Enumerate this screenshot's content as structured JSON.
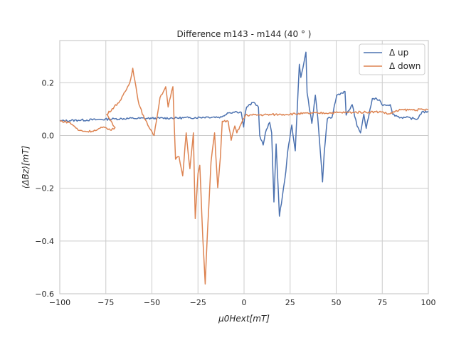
{
  "chart_data": {
    "type": "line",
    "title": "Difference m143 - m144 (40$^\\circ$)",
    "title_display": "Difference m143 - m144 (40 ° )",
    "xlabel": "μ0Hext[mT]",
    "ylabel": "⟨ΔBz⟩[mT]",
    "xlim": [
      -100,
      100
    ],
    "ylim": [
      -0.6,
      0.36
    ],
    "grid": true,
    "legend_position": "top-right",
    "xticks": [
      -100,
      -75,
      -50,
      -25,
      0,
      25,
      50,
      75,
      100
    ],
    "xtick_labels": [
      "−100",
      "−75",
      "−50",
      "−25",
      "0",
      "25",
      "50",
      "75",
      "100"
    ],
    "yticks": [
      0.2,
      0.0,
      -0.2,
      -0.4,
      -0.6
    ],
    "ytick_labels": [
      "0.2",
      "0.0",
      "−0.2",
      "−0.4",
      "−0.6"
    ],
    "series": [
      {
        "name": "Δ up",
        "color": "#4c72b0",
        "x": [
          -100,
          -90,
          -80,
          -70,
          -60,
          -50,
          -40,
          -30,
          -20,
          -12,
          -9,
          -4,
          -1.5,
          -0.2,
          0.3,
          1.4,
          5.3,
          7.8,
          8.5,
          10.4,
          11.6,
          13.9,
          15,
          16.2,
          17.4,
          19.2,
          20.8,
          22.7,
          23.7,
          25.9,
          27.8,
          30,
          30.8,
          33.6,
          34.2,
          36.8,
          38.7,
          40,
          42.6,
          43.5,
          45.2,
          47.7,
          50.3,
          54.8,
          55.4,
          58.7,
          61.3,
          63.2,
          65,
          66.3,
          69.6,
          73.5,
          74.8,
          79.3,
          80.6,
          85,
          87.7,
          94,
          96.6,
          99.2,
          100
        ],
        "y": [
          0.055,
          0.058,
          0.06,
          0.063,
          0.065,
          0.065,
          0.066,
          0.067,
          0.07,
          0.07,
          0.086,
          0.09,
          0.088,
          0.032,
          0.07,
          0.108,
          0.126,
          0.108,
          0.0,
          -0.036,
          0.01,
          0.05,
          0.01,
          -0.252,
          -0.032,
          -0.306,
          -0.23,
          -0.135,
          -0.06,
          0.04,
          -0.058,
          0.27,
          0.22,
          0.316,
          0.162,
          0.046,
          0.153,
          0.068,
          -0.176,
          -0.065,
          0.063,
          0.068,
          0.153,
          0.167,
          0.077,
          0.117,
          0.036,
          0.01,
          0.081,
          0.027,
          0.14,
          0.135,
          0.117,
          0.117,
          0.081,
          0.068,
          0.068,
          0.062,
          0.09,
          0.088,
          0.092
        ]
      },
      {
        "name": "Δ down",
        "color": "#dd8452",
        "x": [
          -100,
          -95,
          -92,
          -90,
          -85,
          -80,
          -77,
          -75,
          -72,
          -70,
          -74.5,
          -66.8,
          -62,
          -60.4,
          -57,
          -54,
          -48.8,
          -45.6,
          -42.5,
          -41.2,
          -38.6,
          -37.2,
          -35.3,
          -33.3,
          -31.4,
          -29.4,
          -27.5,
          -26.5,
          -25,
          -24,
          -22.4,
          -21.1,
          -19.8,
          -17.9,
          -16,
          -14.3,
          -12.8,
          -11.8,
          -8.6,
          -7,
          -5,
          -3.9,
          -1.2,
          0.8,
          20,
          40,
          60,
          75,
          78,
          85,
          100
        ],
        "y": [
          0.055,
          0.05,
          0.035,
          0.02,
          0.015,
          0.02,
          0.03,
          0.03,
          0.02,
          0.03,
          0.08,
          0.135,
          0.2,
          0.255,
          0.117,
          0.063,
          0.0,
          0.144,
          0.185,
          0.108,
          0.185,
          -0.09,
          -0.08,
          -0.153,
          0.01,
          -0.126,
          0.01,
          -0.315,
          -0.144,
          -0.113,
          -0.387,
          -0.563,
          -0.36,
          -0.1,
          0.01,
          -0.198,
          -0.08,
          0.054,
          0.054,
          -0.018,
          0.036,
          0.01,
          0.05,
          0.077,
          0.08,
          0.085,
          0.088,
          0.09,
          0.081,
          0.097,
          0.098
        ]
      }
    ]
  }
}
